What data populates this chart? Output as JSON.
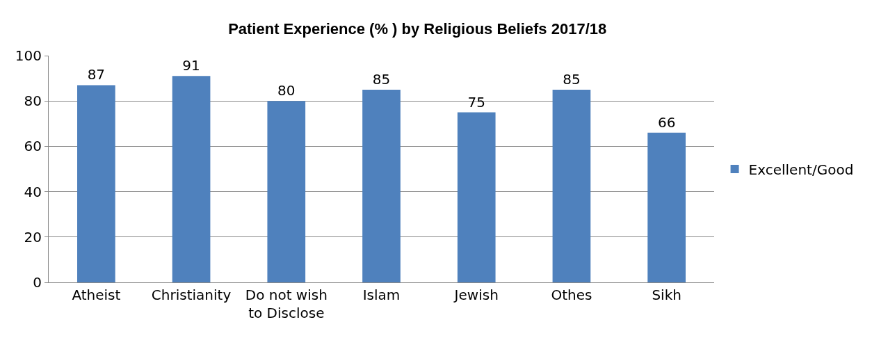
{
  "chart_data": {
    "type": "bar",
    "title": "Patient Experience (% ) by Religious Beliefs 2017/18",
    "categories": [
      "Atheist",
      "Christianity",
      "Do not wish to Disclose",
      "Islam",
      "Jewish",
      "Othes",
      "Sikh"
    ],
    "series": [
      {
        "name": "Excellent/Good",
        "color": "#4f81bd",
        "values": [
          87,
          91,
          80,
          85,
          75,
          85,
          66
        ]
      }
    ],
    "ylim": [
      0,
      100
    ],
    "yticks": [
      0,
      20,
      40,
      60,
      80,
      100
    ],
    "grid": "y",
    "legend": "right",
    "data_labels": true
  }
}
